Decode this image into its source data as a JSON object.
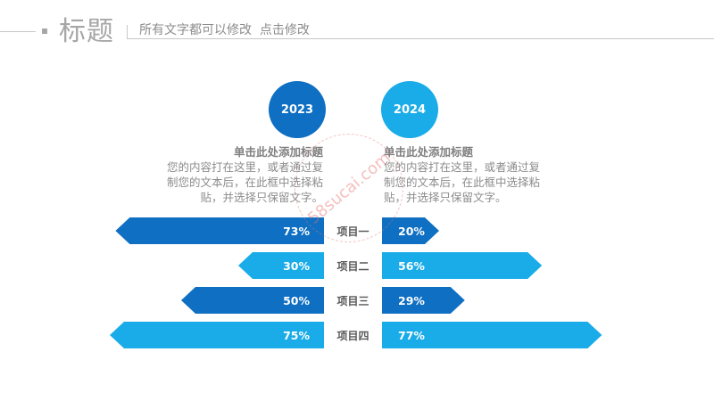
{
  "header": {
    "title": "标题",
    "subtitle": "所有文字都可以修改  点击修改"
  },
  "columns": {
    "left": {
      "year": "2023",
      "color": "#0e6fc3",
      "block_title": "单击此处添加标题",
      "block_text": "您的内容打在这里，或者通过复制您的文本后，在此框中选择粘贴，并选择只保留文字。"
    },
    "right": {
      "year": "2024",
      "color": "#1aace8",
      "block_title": "单击此处添加标题",
      "block_text": "您的内容打在这里，或者通过复制您的文本后，在此框中选择粘贴，并选择只保留文字。"
    }
  },
  "watermark": {
    "text": "58sucai.com"
  },
  "chart_data": {
    "type": "bar",
    "orientation": "horizontal-butterfly",
    "categories": [
      "项目一",
      "项目二",
      "项目三",
      "项目四"
    ],
    "series": [
      {
        "name": "2023",
        "values": [
          73,
          30,
          50,
          75
        ],
        "labels": [
          "73%",
          "30%",
          "50%",
          "75%"
        ]
      },
      {
        "name": "2024",
        "values": [
          20,
          56,
          29,
          77
        ],
        "labels": [
          "20%",
          "56%",
          "29%",
          "77%"
        ]
      }
    ],
    "colors": {
      "dark": "#0e6fc3",
      "light": "#1aace8"
    },
    "row_color_pattern": [
      "dark",
      "light",
      "dark",
      "light"
    ],
    "xlim": [
      0,
      100
    ]
  }
}
